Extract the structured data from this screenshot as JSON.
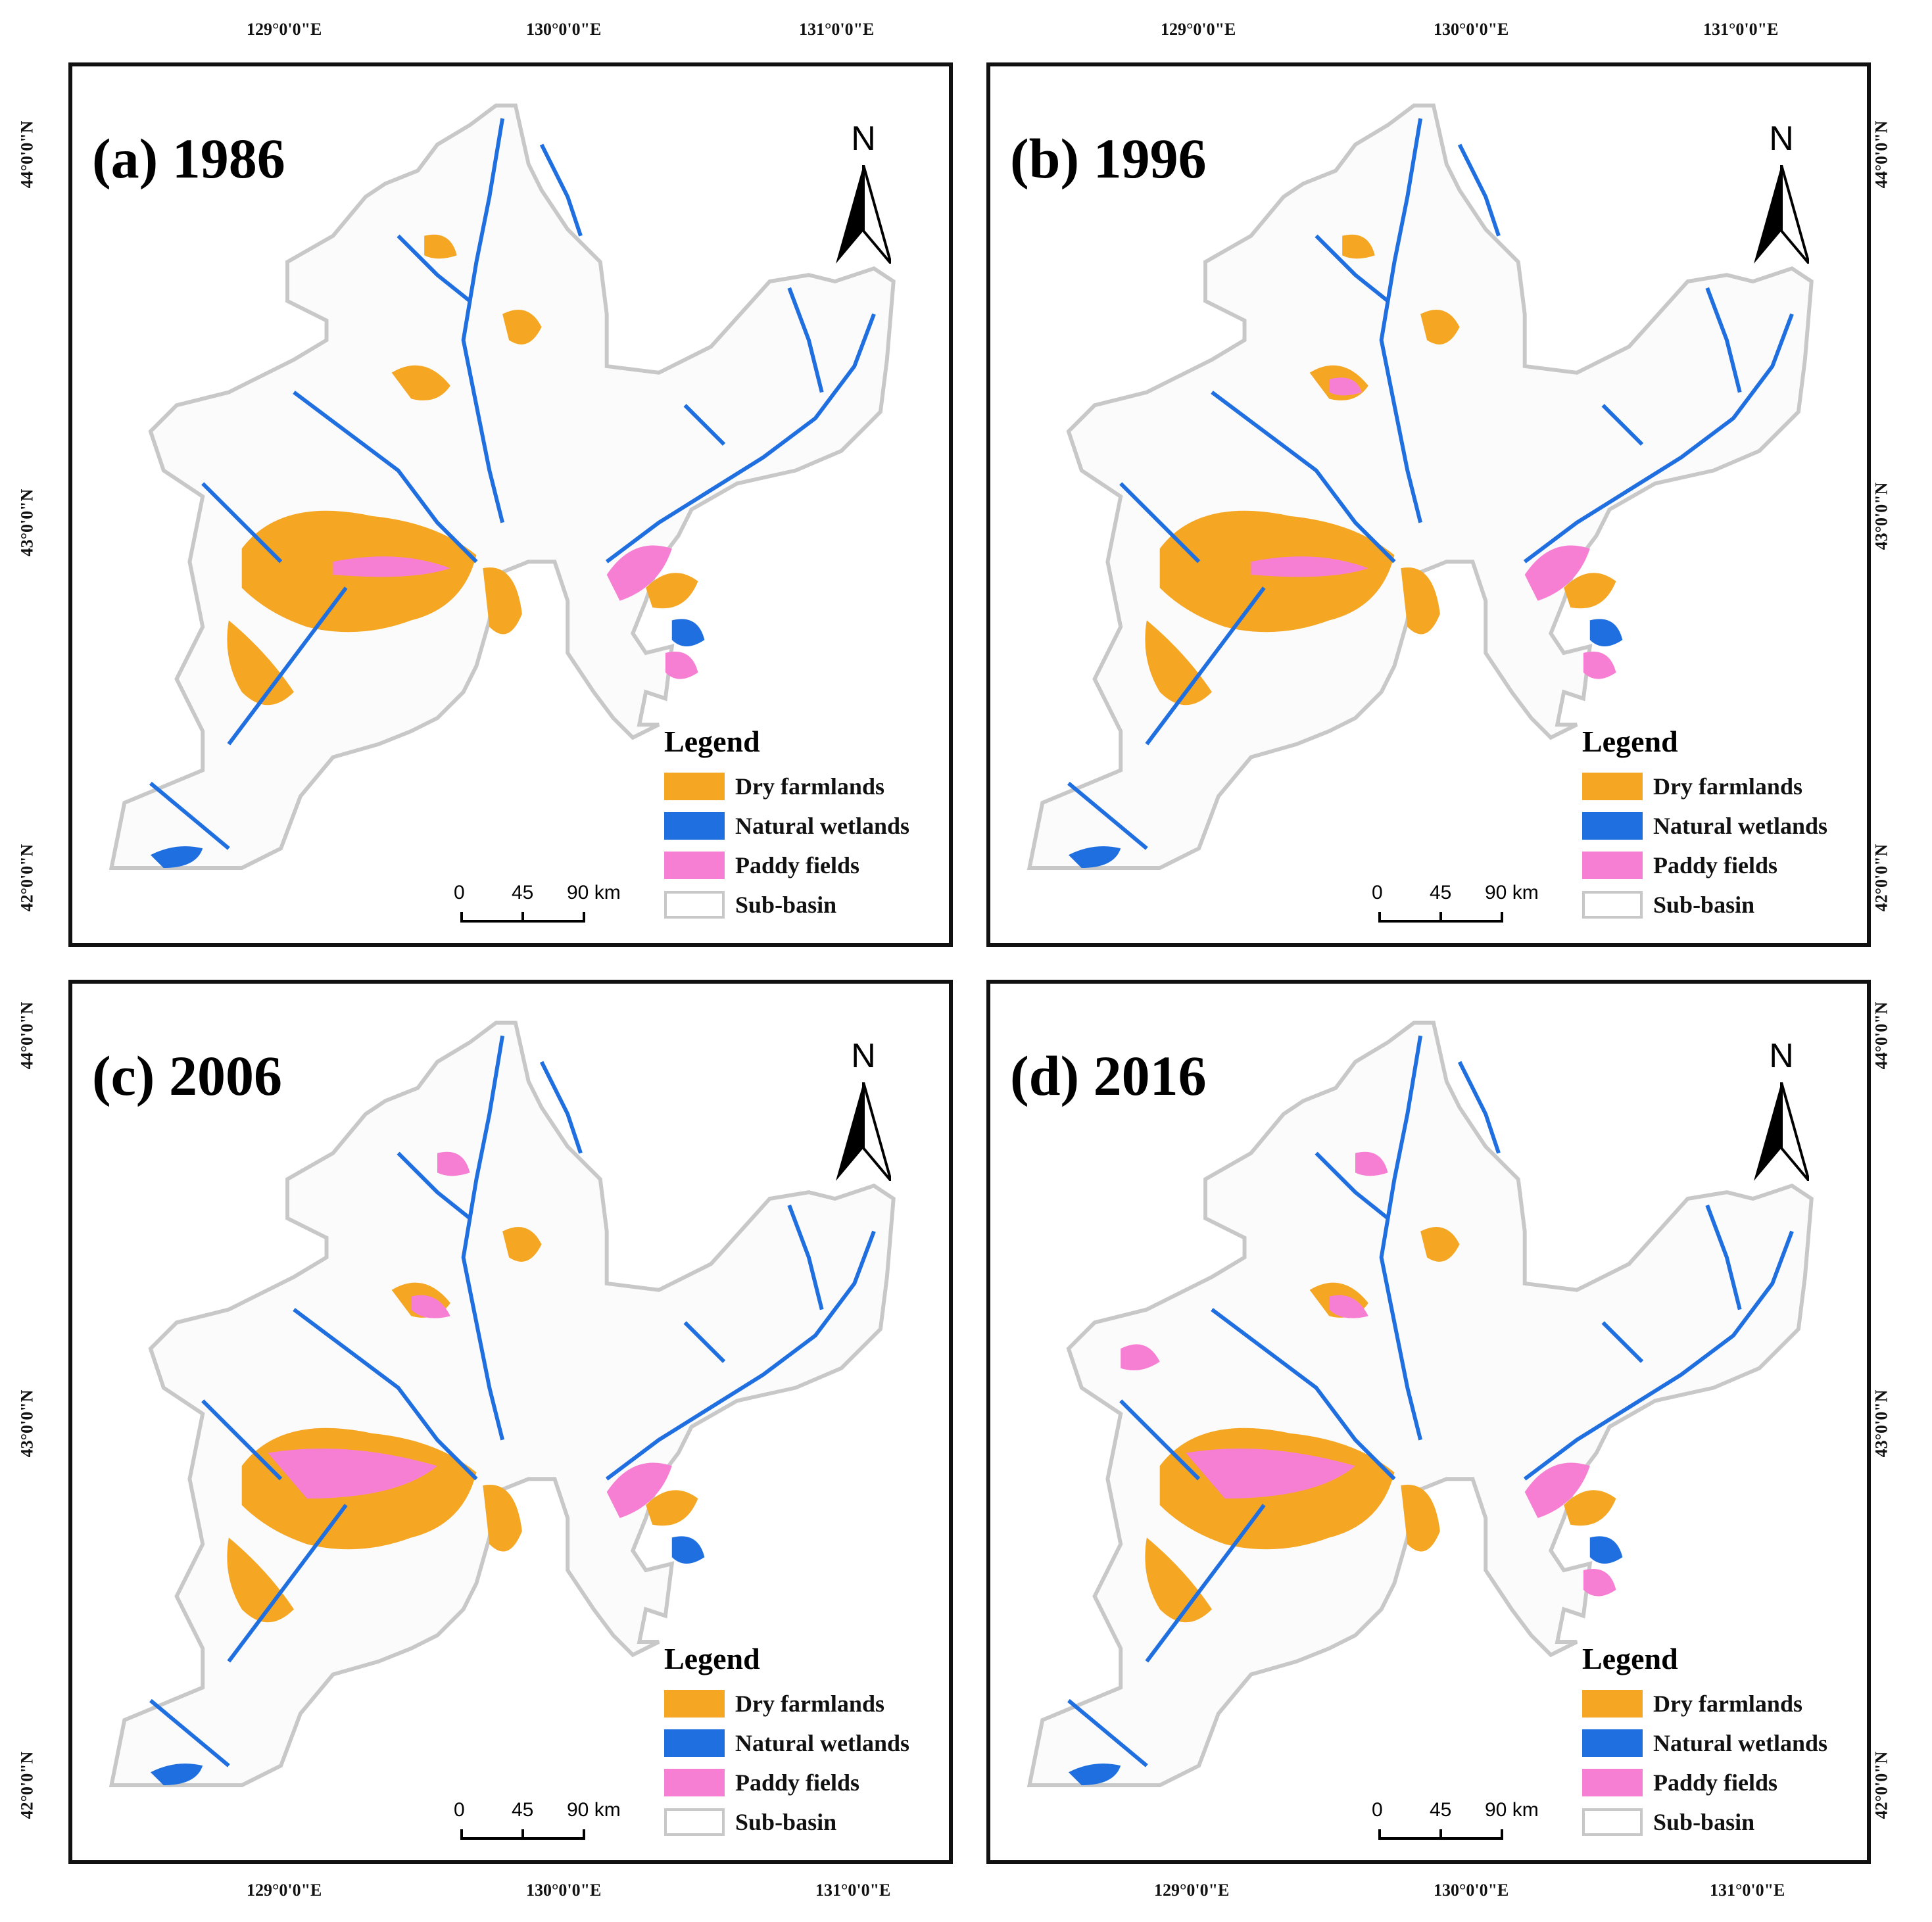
{
  "colors": {
    "dry_farmlands": "#f5a623",
    "natural_wetlands": "#1f6fe0",
    "paddy_fields": "#f77fd3",
    "sub_basin": "#c8c8c8"
  },
  "panels": [
    {
      "id": "a",
      "title": "(a) 1986"
    },
    {
      "id": "b",
      "title": "(b) 1996"
    },
    {
      "id": "c",
      "title": "(c) 2006"
    },
    {
      "id": "d",
      "title": "(d) 2016"
    }
  ],
  "north_label": "N",
  "legend": {
    "title": "Legend",
    "items": [
      {
        "label": "Dry farmlands",
        "color_key": "dry_farmlands"
      },
      {
        "label": "Natural wetlands",
        "color_key": "natural_wetlands"
      },
      {
        "label": "Paddy fields",
        "color_key": "paddy_fields"
      },
      {
        "label": "Sub-basin",
        "color_key": "sub_basin"
      }
    ]
  },
  "scale": {
    "labels": [
      "0",
      "45",
      "90 km"
    ]
  },
  "longitude_labels": [
    "129°0'0\"E",
    "130°0'0\"E",
    "131°0'0\"E"
  ],
  "latitude_labels": [
    "44°0'0\"N",
    "43°0'0\"N",
    "42°0'0\"N"
  ]
}
